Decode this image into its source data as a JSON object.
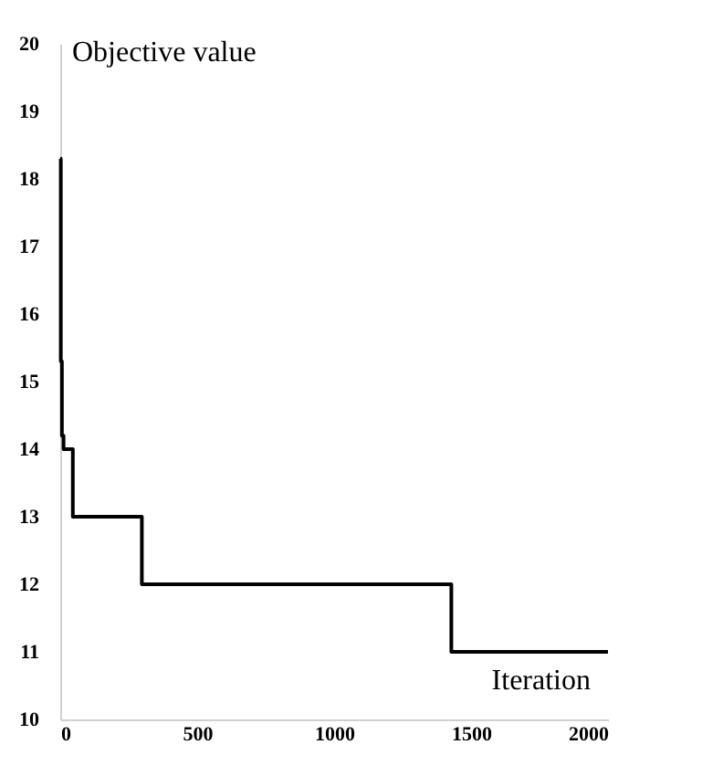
{
  "chart_data": {
    "type": "step",
    "xlabel": "Iteration",
    "ylabel": "Objective value",
    "series": [
      {
        "color": "#000000",
        "x": [
          0,
          2,
          6,
          12,
          46,
          298,
          1428,
          2000
        ],
        "values": [
          18.3,
          15.3,
          14.2,
          14,
          13,
          12,
          11,
          11
        ]
      }
    ],
    "xlim": [
      0,
      2000
    ],
    "xticks": [
      0,
      500,
      1000,
      1500,
      2000
    ],
    "ylim": [
      10,
      20
    ],
    "yticks": [
      10,
      11,
      12,
      13,
      14,
      15,
      16,
      17,
      18,
      19,
      20
    ],
    "grid": false,
    "marker": "none",
    "line_style": "solid"
  }
}
